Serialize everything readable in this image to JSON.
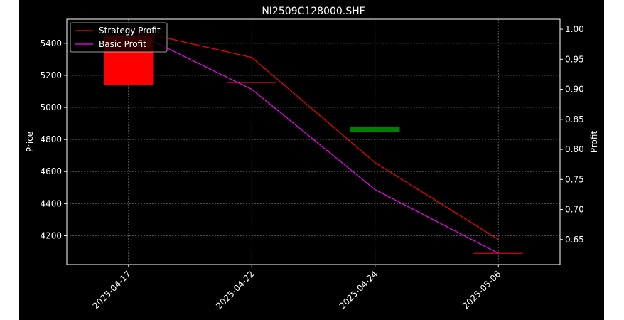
{
  "chart_data": {
    "type": "line",
    "title": "NI2509C128000.SHF",
    "xlabel": "",
    "ylabel": "Price",
    "y2label": "Profit",
    "categories": [
      "2025-04-17",
      "2025-04-22",
      "2025-04-24",
      "2025-05-06"
    ],
    "ylim": [
      4020,
      5550
    ],
    "yticks": [
      4200,
      4400,
      4600,
      4800,
      5000,
      5200,
      5400
    ],
    "y2lim": [
      0.6083,
      1.0167
    ],
    "y2ticks": [
      "0.65",
      "0.70",
      "0.75",
      "0.80",
      "0.85",
      "0.90",
      "0.95",
      "1.00"
    ],
    "grid": true,
    "legend_position": "top-left",
    "series": [
      {
        "name": "Strategy Profit",
        "axis": "right",
        "color": "#ff0000",
        "values": [
          1.0,
          0.953,
          0.778,
          0.65
        ]
      },
      {
        "name": "Basic Profit",
        "axis": "right",
        "color": "#ff00ff",
        "values": [
          1.0,
          0.9,
          0.733,
          0.627
        ]
      }
    ],
    "candles": [
      {
        "category": "2025-04-17",
        "open": 5450,
        "close": 5140,
        "high": 5450,
        "low": 5140,
        "color": "#ff0000"
      },
      {
        "category": "2025-04-22",
        "open": 5155,
        "close": 5155,
        "high": 5155,
        "low": 5155,
        "color": "#ff0000"
      },
      {
        "category": "2025-04-24",
        "open": 4845,
        "close": 4880,
        "high": 4880,
        "low": 4845,
        "color": "#008000"
      },
      {
        "category": "2025-05-06",
        "open": 4090,
        "close": 4090,
        "high": 4090,
        "low": 4090,
        "color": "#ff0000"
      }
    ]
  }
}
